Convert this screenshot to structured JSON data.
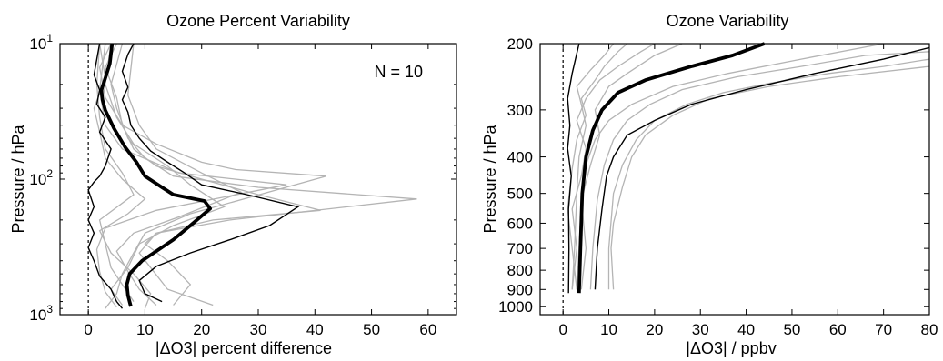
{
  "chart_data": [
    {
      "type": "line",
      "title": "Ozone Percent Variability",
      "xlabel": "|ΔO3| percent difference",
      "ylabel": "Pressure / hPa",
      "annotation": "N = 10",
      "xlim": [
        -5,
        65
      ],
      "ylim": [
        1000,
        10
      ],
      "y_scale": "log",
      "x_ticks": [
        0,
        10,
        20,
        30,
        40,
        50,
        60
      ],
      "y_ticks": [
        {
          "value": 10,
          "base": "10",
          "exp": "1"
        },
        {
          "value": 100,
          "base": "10",
          "exp": "2"
        },
        {
          "value": 1000,
          "base": "10",
          "exp": "3"
        }
      ],
      "reference_line_x": 0,
      "mean": {
        "x": [
          7.5,
          7,
          6.8,
          7.3,
          9.5,
          12,
          15,
          18,
          21.5,
          20.5,
          15,
          13,
          10,
          8.5,
          6.5,
          4.5,
          3,
          2.5,
          2.3,
          3,
          3.8,
          4.2
        ],
        "y": [
          870,
          720,
          600,
          500,
          400,
          340,
          280,
          220,
          165,
          145,
          130,
          115,
          95,
          75,
          58,
          42,
          31,
          26,
          22,
          18,
          14,
          10
        ]
      },
      "envelope_low": {
        "x": [
          6,
          5,
          4,
          2,
          1,
          0,
          1,
          0,
          1,
          0,
          1,
          2,
          3,
          4,
          2,
          3,
          1.5,
          2,
          1,
          1.5,
          2
        ],
        "y": [
          900,
          800,
          650,
          520,
          400,
          320,
          250,
          200,
          160,
          120,
          105,
          95,
          80,
          60,
          45,
          35,
          28,
          22,
          17,
          13,
          10
        ]
      },
      "envelope_high": {
        "x": [
          13,
          10,
          9,
          12,
          18,
          25,
          32,
          37,
          28,
          20,
          17,
          14,
          11,
          9,
          7.5,
          7,
          6,
          7,
          6,
          7,
          8
        ],
        "y": [
          800,
          700,
          560,
          440,
          350,
          280,
          220,
          160,
          130,
          110,
          90,
          75,
          62,
          50,
          40,
          32,
          26,
          21,
          16,
          12,
          10
        ]
      },
      "individual": [
        {
          "x": [
            15,
            18,
            14,
            10,
            12,
            22,
            41,
            30,
            20,
            12,
            8,
            6,
            5,
            3,
            5
          ],
          "y": [
            850,
            600,
            400,
            300,
            250,
            200,
            170,
            130,
            100,
            80,
            60,
            40,
            25,
            15,
            10
          ]
        },
        {
          "x": [
            22,
            14,
            11,
            9,
            12,
            25,
            58,
            30,
            15,
            10,
            7,
            5,
            4,
            6
          ],
          "y": [
            850,
            650,
            450,
            350,
            250,
            200,
            140,
            115,
            95,
            70,
            50,
            30,
            20,
            10
          ]
        },
        {
          "x": [
            3,
            5,
            6,
            8,
            10,
            18,
            42,
            26,
            20,
            12,
            6,
            3,
            2,
            4
          ],
          "y": [
            900,
            700,
            500,
            350,
            250,
            180,
            95,
            85,
            75,
            55,
            40,
            25,
            15,
            10
          ]
        },
        {
          "x": [
            10,
            11,
            8,
            4,
            2,
            7,
            10,
            6,
            3,
            2,
            1,
            3,
            2
          ],
          "y": [
            900,
            700,
            500,
            350,
            240,
            180,
            140,
            100,
            70,
            45,
            30,
            18,
            10
          ]
        },
        {
          "x": [
            6,
            4,
            7,
            9,
            15,
            24,
            18,
            14,
            8,
            5,
            3,
            4
          ],
          "y": [
            850,
            650,
            450,
            300,
            220,
            160,
            110,
            80,
            55,
            35,
            20,
            10
          ]
        },
        {
          "x": [
            5,
            3,
            2,
            1.5,
            3,
            12,
            35,
            16,
            6,
            3,
            2,
            3
          ],
          "y": [
            880,
            680,
            480,
            330,
            230,
            170,
            110,
            90,
            60,
            40,
            22,
            10
          ]
        },
        {
          "x": [
            8,
            6,
            4,
            3,
            2,
            8,
            6,
            3,
            2,
            1.5,
            2
          ],
          "y": [
            800,
            600,
            450,
            300,
            200,
            130,
            90,
            60,
            35,
            20,
            10
          ]
        },
        {
          "x": [
            12,
            9,
            7,
            5,
            8,
            16,
            27,
            20,
            12,
            9,
            7,
            8
          ],
          "y": [
            850,
            650,
            480,
            340,
            250,
            190,
            125,
            90,
            60,
            40,
            24,
            10
          ]
        }
      ]
    },
    {
      "type": "line",
      "title": "Ozone Variability",
      "xlabel": "|ΔO3| / ppbv",
      "ylabel": "Pressure / hPa",
      "xlim": [
        -5,
        80
      ],
      "ylim": [
        1050,
        200
      ],
      "y_scale": "log",
      "x_ticks": [
        0,
        10,
        20,
        30,
        40,
        50,
        60,
        70,
        80
      ],
      "y_ticks": [
        200,
        300,
        400,
        500,
        600,
        700,
        800,
        900,
        1000
      ],
      "reference_line_x": 0,
      "mean": {
        "x": [
          3.5,
          3.8,
          4.2,
          5,
          6.5,
          8.5,
          12,
          18,
          28,
          37,
          44
        ],
        "y": [
          920,
          700,
          500,
          400,
          340,
          300,
          270,
          250,
          230,
          215,
          200
        ]
      },
      "envelope_low": {
        "x": [
          1.2,
          1.3,
          1.2,
          1.8,
          1,
          1.5,
          1,
          2,
          3.5
        ],
        "y": [
          920,
          700,
          550,
          450,
          380,
          330,
          280,
          240,
          200
        ]
      },
      "envelope_high": {
        "x": [
          7,
          7.5,
          8.5,
          9.5,
          11,
          14,
          20,
          28,
          40,
          55,
          70,
          80
        ],
        "y": [
          900,
          700,
          550,
          450,
          400,
          350,
          320,
          290,
          265,
          240,
          220,
          205
        ]
      },
      "individual": [
        {
          "x": [
            10,
            10,
            11,
            13,
            16,
            20,
            27,
            35,
            45,
            58,
            70,
            80
          ],
          "y": [
            900,
            700,
            500,
            420,
            360,
            320,
            290,
            270,
            255,
            240,
            230,
            220
          ]
        },
        {
          "x": [
            11,
            10.5,
            11,
            13,
            15,
            18,
            24,
            32,
            45,
            60,
            80
          ],
          "y": [
            900,
            700,
            600,
            480,
            400,
            350,
            310,
            280,
            260,
            245,
            230
          ]
        },
        {
          "x": [
            3,
            3.5,
            4,
            5,
            7,
            10,
            15,
            24,
            36,
            52,
            70
          ],
          "y": [
            900,
            700,
            520,
            420,
            360,
            320,
            290,
            260,
            240,
            220,
            200
          ]
        },
        {
          "x": [
            6,
            6.5,
            7.5,
            9,
            11,
            14,
            19,
            26,
            38,
            52,
            66,
            80
          ],
          "y": [
            900,
            700,
            520,
            420,
            360,
            320,
            290,
            265,
            245,
            230,
            215,
            210
          ]
        },
        {
          "x": [
            2,
            3,
            2,
            4,
            5,
            3,
            5,
            8,
            12,
            17,
            20
          ],
          "y": [
            900,
            700,
            550,
            450,
            380,
            320,
            280,
            250,
            230,
            210,
            200
          ]
        },
        {
          "x": [
            3,
            2,
            1,
            2,
            3,
            5,
            4,
            7,
            9,
            12,
            14
          ],
          "y": [
            900,
            700,
            550,
            430,
            360,
            310,
            280,
            250,
            230,
            210,
            200
          ]
        },
        {
          "x": [
            4,
            5,
            4,
            6,
            8,
            7,
            10,
            14,
            20,
            26
          ],
          "y": [
            900,
            700,
            520,
            420,
            350,
            300,
            260,
            240,
            215,
            200
          ]
        },
        {
          "x": [
            2,
            2.5,
            3,
            3.5,
            5,
            4,
            3,
            6,
            9,
            11
          ],
          "y": [
            900,
            700,
            500,
            400,
            330,
            290,
            260,
            235,
            215,
            200
          ]
        }
      ]
    }
  ],
  "colors": {
    "mean": "#000000",
    "envelope": "#000000",
    "individual": "#b4b4b4",
    "axes": "#000000"
  }
}
